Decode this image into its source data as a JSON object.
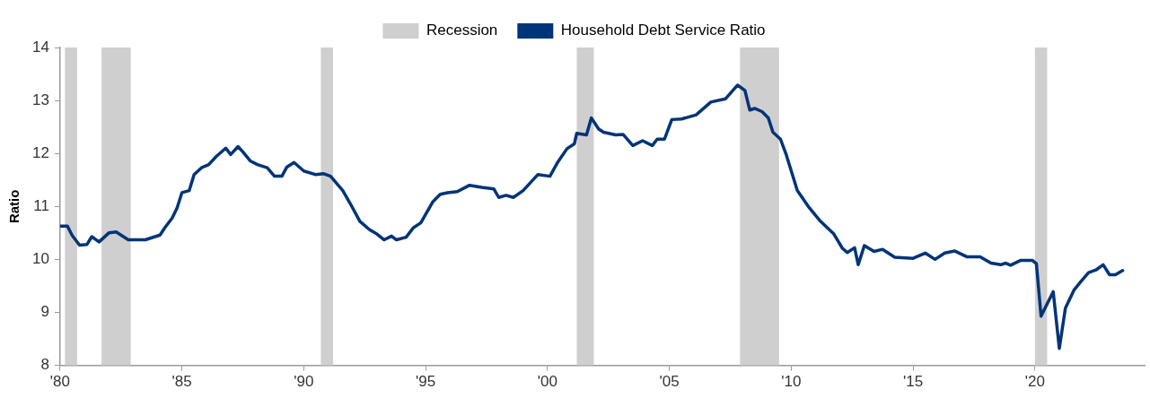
{
  "chart_data": {
    "type": "line",
    "ylabel": "Ratio",
    "legend": "top",
    "x": [
      1980,
      1980.3,
      1980.5,
      1980.8,
      1981.1,
      1981.3,
      1981.6,
      1982,
      1982.3,
      1982.8,
      1983.5,
      1984.1,
      1984.3,
      1984.6,
      1984.8,
      1985,
      1985.3,
      1985.5,
      1985.8,
      1986.1,
      1986.4,
      1986.8,
      1987,
      1987.3,
      1987.5,
      1987.8,
      1988.1,
      1988.5,
      1988.8,
      1989.1,
      1989.3,
      1989.6,
      1990,
      1990.5,
      1990.8,
      1991.1,
      1991.6,
      1991.9,
      1992.3,
      1992.7,
      1993,
      1993.3,
      1993.6,
      1993.8,
      1994.2,
      1994.5,
      1994.8,
      1995.3,
      1995.6,
      1995.9,
      1996.3,
      1996.8,
      1997.3,
      1997.8,
      1998,
      1998.3,
      1998.6,
      1999,
      1999.6,
      2000.1,
      2000.4,
      2000.8,
      2001.1,
      2001.2,
      2001.6,
      2001.8,
      2002.1,
      2002.3,
      2002.8,
      2003.1,
      2003.5,
      2003.9,
      2004.3,
      2004.5,
      2004.8,
      2005.1,
      2005.5,
      2006.1,
      2006.7,
      2007.3,
      2007.8,
      2008.1,
      2008.3,
      2008.5,
      2008.8,
      2009.06,
      2009.25,
      2009.56,
      2009.8,
      2010.25,
      2010.7,
      2011.2,
      2011.75,
      2012.1,
      2012.3,
      2012.6,
      2012.75,
      2013,
      2013.4,
      2013.75,
      2014.25,
      2015,
      2015.5,
      2015.9,
      2016.3,
      2016.7,
      2017.2,
      2017.75,
      2018.2,
      2018.6,
      2018.8,
      2019,
      2019.4,
      2019.9,
      2020.06,
      2020.25,
      2020.75,
      2021,
      2021.25,
      2021.6,
      2021.9,
      2022.2,
      2022.5,
      2022.8,
      2023.06,
      2023.3,
      2023.6
    ],
    "series": [
      {
        "name": "Household Debt Service Ratio",
        "color": "#003478",
        "values": [
          10.63,
          10.63,
          10.45,
          10.27,
          10.28,
          10.43,
          10.33,
          10.5,
          10.52,
          10.37,
          10.37,
          10.46,
          10.6,
          10.78,
          10.97,
          11.26,
          11.3,
          11.6,
          11.73,
          11.79,
          11.94,
          12.1,
          11.98,
          12.13,
          12.03,
          11.86,
          11.79,
          11.73,
          11.57,
          11.57,
          11.74,
          11.83,
          11.67,
          11.6,
          11.62,
          11.57,
          11.3,
          11.06,
          10.72,
          10.56,
          10.48,
          10.37,
          10.44,
          10.37,
          10.42,
          10.6,
          10.69,
          11.09,
          11.23,
          11.26,
          11.28,
          11.4,
          11.36,
          11.33,
          11.17,
          11.21,
          11.17,
          11.3,
          11.6,
          11.57,
          11.82,
          12.09,
          12.18,
          12.38,
          12.35,
          12.67,
          12.46,
          12.4,
          12.35,
          12.36,
          12.15,
          12.24,
          12.15,
          12.27,
          12.27,
          12.64,
          12.65,
          12.73,
          12.97,
          13.03,
          13.29,
          13.19,
          12.82,
          12.85,
          12.79,
          12.67,
          12.4,
          12.27,
          11.97,
          11.3,
          11.0,
          10.72,
          10.48,
          10.21,
          10.13,
          10.22,
          9.9,
          10.26,
          10.15,
          10.19,
          10.04,
          10.02,
          10.12,
          10.0,
          10.12,
          10.16,
          10.05,
          10.05,
          9.93,
          9.9,
          9.93,
          9.89,
          9.98,
          9.98,
          9.92,
          8.93,
          9.39,
          8.32,
          9.08,
          9.42,
          9.59,
          9.75,
          9.8,
          9.9,
          9.71,
          9.71,
          9.79
        ]
      }
    ],
    "xlim": [
      1980,
      2024.5
    ],
    "xticks": [
      {
        "value": 1980,
        "label": "'80"
      },
      {
        "value": 1985,
        "label": "'85"
      },
      {
        "value": 1990,
        "label": "'90"
      },
      {
        "value": 1995,
        "label": "'95"
      },
      {
        "value": 2000,
        "label": "'00"
      },
      {
        "value": 2005,
        "label": "'05"
      },
      {
        "value": 2010,
        "label": "'10"
      },
      {
        "value": 2015,
        "label": "'15"
      },
      {
        "value": 2020,
        "label": "'20"
      }
    ],
    "ylim": [
      8,
      14
    ],
    "yticks": [
      8,
      9,
      10,
      11,
      12,
      13,
      14
    ],
    "bands": [
      {
        "axis": "x",
        "from": 1980.2,
        "to": 1980.7,
        "label": "Recession",
        "color": "#d0cfd0"
      },
      {
        "axis": "x",
        "from": 1981.7,
        "to": 1982.9,
        "color": "#d0cfd0"
      },
      {
        "axis": "x",
        "from": 1990.7,
        "to": 1991.2,
        "color": "#d0cfd0"
      },
      {
        "axis": "x",
        "from": 2001.2,
        "to": 2001.9,
        "color": "#d0cfd0"
      },
      {
        "axis": "x",
        "from": 2007.9,
        "to": 2009.5,
        "color": "#d0cfd0"
      },
      {
        "axis": "x",
        "from": 2020,
        "to": 2020.5,
        "color": "#d0cfd0"
      }
    ]
  }
}
